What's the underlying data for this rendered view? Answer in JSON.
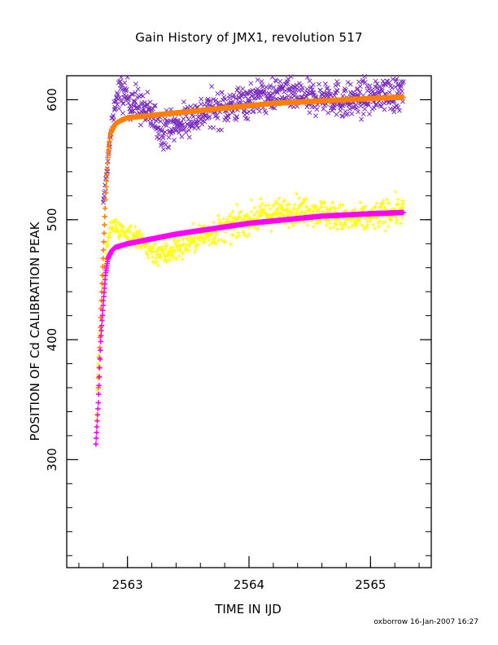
{
  "chart_data": {
    "type": "scatter",
    "title": "Gain History of JMX1, revolution 517",
    "xlabel": "TIME IN IJD",
    "ylabel": "POSITION OF Cd CALIBRATION PEAK",
    "xlim": [
      2562.5,
      2565.5
    ],
    "ylim": [
      210,
      620
    ],
    "x_ticks": [
      2563,
      2564,
      2565
    ],
    "y_ticks": [
      300,
      400,
      500,
      600
    ],
    "x_minor_step": 0.2,
    "y_minor_step": 20,
    "grid": false,
    "legend": "none",
    "series": [
      {
        "marker": "x",
        "color": "#7B2FBE",
        "description_points": [
          [
            2562.8,
            510
          ],
          [
            2562.85,
            560
          ],
          [
            2562.9,
            600
          ],
          [
            2562.95,
            606
          ],
          [
            2563.0,
            602
          ],
          [
            2563.1,
            595
          ],
          [
            2563.2,
            586
          ],
          [
            2563.3,
            575
          ],
          [
            2563.4,
            578
          ],
          [
            2563.5,
            585
          ],
          [
            2563.6,
            588
          ],
          [
            2563.7,
            592
          ],
          [
            2563.8,
            594
          ],
          [
            2563.9,
            596
          ],
          [
            2564.0,
            600
          ],
          [
            2564.1,
            603
          ],
          [
            2564.2,
            605
          ],
          [
            2564.3,
            607
          ],
          [
            2564.4,
            603
          ],
          [
            2564.5,
            600
          ],
          [
            2564.6,
            604
          ],
          [
            2564.7,
            602
          ],
          [
            2564.8,
            598
          ],
          [
            2564.9,
            600
          ],
          [
            2565.0,
            603
          ],
          [
            2565.1,
            606
          ],
          [
            2565.2,
            604
          ],
          [
            2565.27,
            605
          ]
        ],
        "spread": 18,
        "clip_top": 620
      },
      {
        "marker": "+",
        "color": "#FFFF00",
        "description_points": [
          [
            2562.74,
            320
          ],
          [
            2562.75,
            365
          ],
          [
            2562.76,
            380
          ],
          [
            2562.78,
            420
          ],
          [
            2562.8,
            450
          ],
          [
            2562.83,
            480
          ],
          [
            2562.87,
            495
          ],
          [
            2562.9,
            495
          ],
          [
            2563.0,
            488
          ],
          [
            2563.1,
            482
          ],
          [
            2563.2,
            475
          ],
          [
            2563.3,
            472
          ],
          [
            2563.4,
            476
          ],
          [
            2563.5,
            482
          ],
          [
            2563.6,
            486
          ],
          [
            2563.7,
            490
          ],
          [
            2563.8,
            493
          ],
          [
            2563.9,
            496
          ],
          [
            2564.0,
            500
          ],
          [
            2564.1,
            503
          ],
          [
            2564.2,
            505
          ],
          [
            2564.3,
            507
          ],
          [
            2564.4,
            508
          ],
          [
            2564.5,
            508
          ],
          [
            2564.6,
            506
          ],
          [
            2564.7,
            503
          ],
          [
            2564.8,
            500
          ],
          [
            2564.9,
            500
          ],
          [
            2565.0,
            502
          ],
          [
            2565.1,
            505
          ],
          [
            2565.2,
            507
          ],
          [
            2565.27,
            508
          ]
        ],
        "spread": 14,
        "clip_top": 620
      },
      {
        "marker": "+",
        "color": "#FF8000",
        "fit_curve": [
          [
            2562.76,
            360
          ],
          [
            2562.78,
            420
          ],
          [
            2562.8,
            470
          ],
          [
            2562.82,
            520
          ],
          [
            2562.84,
            555
          ],
          [
            2562.86,
            572
          ],
          [
            2562.9,
            580
          ],
          [
            2562.95,
            583
          ],
          [
            2563.0,
            585
          ],
          [
            2563.2,
            587
          ],
          [
            2563.4,
            589
          ],
          [
            2563.6,
            591
          ],
          [
            2563.8,
            593
          ],
          [
            2564.0,
            595
          ],
          [
            2564.2,
            597
          ],
          [
            2564.4,
            598
          ],
          [
            2564.6,
            599
          ],
          [
            2564.8,
            600
          ],
          [
            2565.0,
            601
          ],
          [
            2565.2,
            602
          ],
          [
            2565.27,
            602
          ]
        ]
      },
      {
        "marker": "+",
        "color": "#FF00FF",
        "fit_curve": [
          [
            2562.74,
            313
          ],
          [
            2562.75,
            330
          ],
          [
            2562.76,
            348
          ],
          [
            2562.78,
            400
          ],
          [
            2562.8,
            430
          ],
          [
            2562.82,
            455
          ],
          [
            2562.84,
            468
          ],
          [
            2562.87,
            474
          ],
          [
            2562.9,
            477
          ],
          [
            2563.0,
            480
          ],
          [
            2563.2,
            484
          ],
          [
            2563.4,
            488
          ],
          [
            2563.6,
            491
          ],
          [
            2563.8,
            494
          ],
          [
            2564.0,
            497
          ],
          [
            2564.2,
            499
          ],
          [
            2564.4,
            501
          ],
          [
            2564.6,
            503
          ],
          [
            2564.8,
            504
          ],
          [
            2565.0,
            505
          ],
          [
            2565.27,
            506
          ]
        ]
      }
    ]
  },
  "footer": {
    "credit": "oxborrow 16-Jan-2007 16:27"
  }
}
